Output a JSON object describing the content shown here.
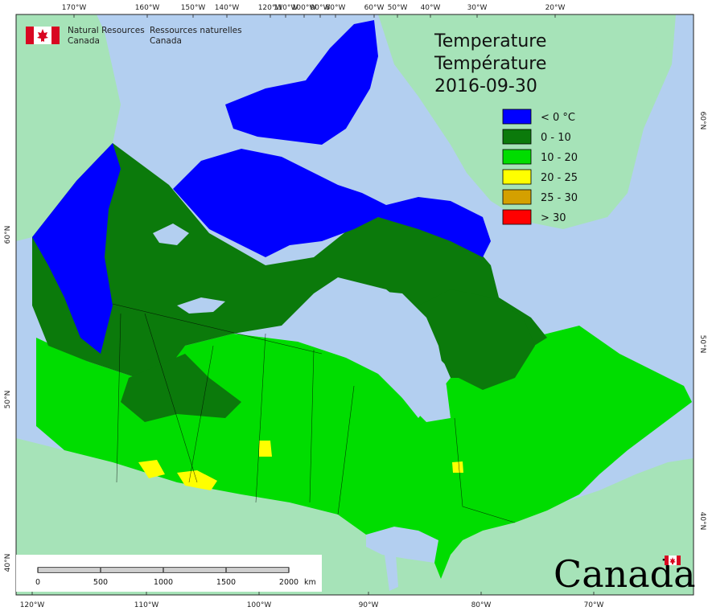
{
  "agency": {
    "en_line1": "Natural Resources",
    "en_line2": "Canada",
    "fr_line1": "Ressources naturelles",
    "fr_line2": "Canada"
  },
  "title": {
    "line1": "Temperature",
    "line2": "Température",
    "date": "2016-09-30"
  },
  "legend": [
    {
      "label": "< 0 °C",
      "color": "#0000ff"
    },
    {
      "label": "0 - 10",
      "color": "#0b7a0b"
    },
    {
      "label": "10 - 20",
      "color": "#00dd00"
    },
    {
      "label": "20 - 25",
      "color": "#ffff00"
    },
    {
      "label": "25 - 30",
      "color": "#d4a000"
    },
    {
      "label": "> 30",
      "color": "#ff0000"
    }
  ],
  "graticule": {
    "top_longitudes": [
      "170°W",
      "160°W",
      "150°W",
      "140°W",
      "120°W",
      "110°W",
      "100°W",
      "90°W",
      "80°W",
      "60°W",
      "50°W",
      "40°W",
      "30°W",
      "20°W"
    ],
    "bottom_longitudes": [
      "120°W",
      "110°W",
      "100°W",
      "90°W",
      "80°W",
      "70°W"
    ],
    "left_latitudes": [
      "60°N",
      "50°N",
      "40°N"
    ],
    "right_latitudes": [
      "60°N",
      "50°N",
      "40°N"
    ]
  },
  "scale_bar": {
    "ticks": [
      "0",
      "500",
      "1000",
      "1500",
      "2000"
    ],
    "unit": "km"
  },
  "wordmark": "Canada",
  "colors": {
    "ocean": "#b3cff0",
    "land_other": "#a6e3b8",
    "water_lake": "#b3cff0"
  }
}
